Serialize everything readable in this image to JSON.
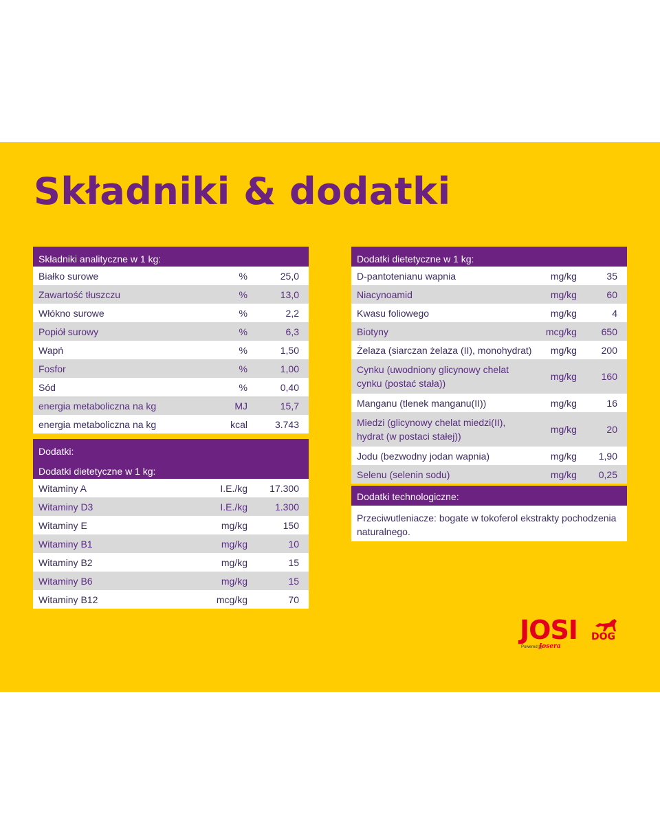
{
  "title": "Składniki & dodatki",
  "analytical": {
    "header": "Składniki analityczne w 1 kg:",
    "rows": [
      {
        "name": "Białko surowe",
        "unit": "%",
        "value": "25,0"
      },
      {
        "name": "Zawartość tłuszczu",
        "unit": "%",
        "value": "13,0"
      },
      {
        "name": "Włókno surowe",
        "unit": "%",
        "value": "2,2"
      },
      {
        "name": "Popiół surowy",
        "unit": "%",
        "value": "6,3"
      },
      {
        "name": "Wapń",
        "unit": "%",
        "value": "1,50"
      },
      {
        "name": "Fosfor",
        "unit": "%",
        "value": "1,00"
      },
      {
        "name": "Sód",
        "unit": "%",
        "value": "0,40"
      },
      {
        "name": "energia metaboliczna na kg",
        "unit": "MJ",
        "value": "15,7"
      },
      {
        "name": "energia metaboliczna na kg",
        "unit": "kcal",
        "value": "3.743"
      }
    ]
  },
  "additives": {
    "header": "Dodatki:",
    "subheader": "Dodatki dietetyczne w 1 kg:",
    "rows": [
      {
        "name": "Witaminy A",
        "unit": "I.E./kg",
        "value": "17.300"
      },
      {
        "name": "Witaminy D3",
        "unit": "I.E./kg",
        "value": "1.300"
      },
      {
        "name": "Witaminy E",
        "unit": "mg/kg",
        "value": "150"
      },
      {
        "name": "Witaminy B1",
        "unit": "mg/kg",
        "value": "10"
      },
      {
        "name": "Witaminy B2",
        "unit": "mg/kg",
        "value": "15"
      },
      {
        "name": "Witaminy B6",
        "unit": "mg/kg",
        "value": "15"
      },
      {
        "name": "Witaminy B12",
        "unit": "mcg/kg",
        "value": "70"
      }
    ]
  },
  "dietetic": {
    "header": "Dodatki dietetyczne w 1 kg:",
    "rows": [
      {
        "name": "D-pantotenianu wapnia",
        "unit": "mg/kg",
        "value": "35"
      },
      {
        "name": "Niacynoamid",
        "unit": "mg/kg",
        "value": "60"
      },
      {
        "name": "Kwasu foliowego",
        "unit": "mg/kg",
        "value": "4"
      },
      {
        "name": "Biotyny",
        "unit": "mcg/kg",
        "value": "650"
      },
      {
        "name": "Żelaza (siarczan żelaza (II), monohydrat)",
        "unit": "mg/kg",
        "value": "200"
      },
      {
        "name": "Cynku (uwodniony glicynowy chelat cynku (postać stała))",
        "unit": "mg/kg",
        "value": "160"
      },
      {
        "name": "Manganu (tlenek manganu(II))",
        "unit": "mg/kg",
        "value": "16"
      },
      {
        "name": "Miedzi (glicynowy chelat miedzi(II), hydrat (w postaci stałej))",
        "unit": "mg/kg",
        "value": "20"
      },
      {
        "name": "Jodu (bezwodny jodan wapnia)",
        "unit": "mg/kg",
        "value": "1,90"
      },
      {
        "name": "Selenu (selenin sodu)",
        "unit": "mg/kg",
        "value": "0,25"
      }
    ]
  },
  "technological": {
    "header": "Dodatki technologiczne:",
    "text": "Przeciwutleniacze: bogate w tokoferol ekstrakty pochodzenia naturalnego."
  },
  "logo": {
    "brand": "JOSI",
    "sub": "DOG",
    "powered": "Powered by",
    "maker": "Josera"
  },
  "colors": {
    "background": "#fecc00",
    "purple": "#6b2280",
    "row_gray": "#d9d9d9",
    "logo_red": "#e3001b"
  }
}
